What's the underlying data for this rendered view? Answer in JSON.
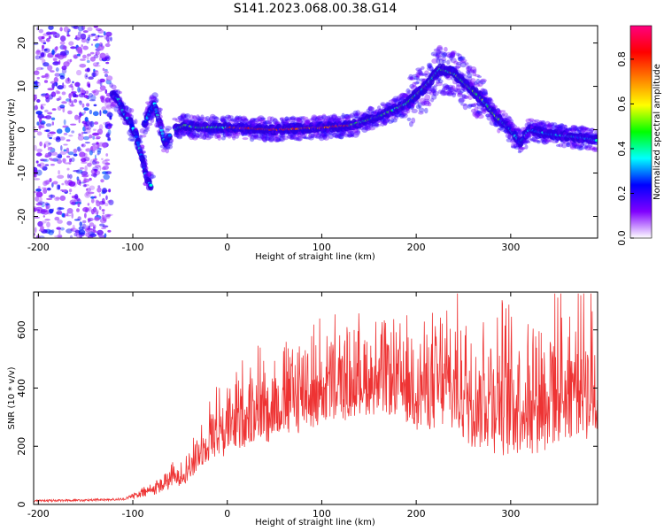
{
  "title": "S141.2023.068.00.38.G14",
  "chart_data": [
    {
      "type": "heatmap",
      "xlabel": "Height of straight line (km)",
      "ylabel": "Frequency (Hz)",
      "xlim": [
        -205,
        392
      ],
      "ylim": [
        -25,
        24
      ],
      "xticks": [
        -200,
        -100,
        0,
        100,
        200,
        300
      ],
      "yticks": [
        -20,
        -10,
        0,
        10,
        20
      ],
      "colorbar": {
        "label": "Normalized spectral amplitude",
        "range": [
          0,
          0.95
        ],
        "ticks": [
          0.0,
          0.2,
          0.4,
          0.6,
          0.8
        ],
        "colors": [
          "#ffffff",
          "#8000ff",
          "#0000ff",
          "#00ffff",
          "#00ff00",
          "#ffff00",
          "#ff8000",
          "#ff0000",
          "#ff0080"
        ]
      },
      "ridge_points": [
        [
          -122,
          8
        ],
        [
          -115,
          7
        ],
        [
          -110,
          4
        ],
        [
          -103,
          2
        ],
        [
          -97,
          -1
        ],
        [
          -92,
          -5
        ],
        [
          -88,
          -9
        ],
        [
          -84,
          -12
        ],
        [
          -80,
          -13
        ],
        [
          -88,
          1
        ],
        [
          -82,
          4
        ],
        [
          -77,
          6
        ],
        [
          -72,
          2
        ],
        [
          -66,
          -3
        ],
        [
          -60,
          -1
        ],
        [
          -55,
          0
        ],
        [
          -45,
          1
        ],
        [
          -30,
          0.5
        ],
        [
          0,
          0.5
        ],
        [
          50,
          0
        ],
        [
          100,
          0.5
        ],
        [
          130,
          1
        ],
        [
          160,
          3
        ],
        [
          190,
          6
        ],
        [
          210,
          10
        ],
        [
          225,
          14
        ],
        [
          240,
          13
        ],
        [
          255,
          10
        ],
        [
          270,
          7
        ],
        [
          285,
          3
        ],
        [
          300,
          0
        ],
        [
          310,
          -3
        ],
        [
          320,
          0
        ],
        [
          340,
          -1
        ],
        [
          360,
          -1.5
        ],
        [
          380,
          -2
        ],
        [
          392,
          -2.5
        ]
      ]
    },
    {
      "type": "line",
      "xlabel": "Height of straight line (km)",
      "ylabel": "SNR (10 * v/v)",
      "xlim": [
        -205,
        392
      ],
      "ylim": [
        0,
        730
      ],
      "xticks": [
        -200,
        -100,
        0,
        100,
        200,
        300
      ],
      "yticks": [
        0,
        200,
        400,
        600
      ],
      "line_color": "#ee3333",
      "envelope": [
        [
          -205,
          12,
          8
        ],
        [
          -150,
          15,
          8
        ],
        [
          -110,
          18,
          8
        ],
        [
          -100,
          30,
          12
        ],
        [
          -80,
          60,
          25
        ],
        [
          -60,
          100,
          40
        ],
        [
          -40,
          150,
          60
        ],
        [
          -25,
          230,
          80
        ],
        [
          -15,
          300,
          120
        ],
        [
          0,
          320,
          130
        ],
        [
          20,
          380,
          150
        ],
        [
          50,
          420,
          170
        ],
        [
          100,
          470,
          170
        ],
        [
          150,
          500,
          160
        ],
        [
          180,
          490,
          160
        ],
        [
          200,
          460,
          170
        ],
        [
          230,
          500,
          210
        ],
        [
          260,
          480,
          240
        ],
        [
          300,
          460,
          250
        ],
        [
          340,
          480,
          250
        ],
        [
          370,
          520,
          240
        ],
        [
          392,
          480,
          230
        ]
      ]
    }
  ]
}
